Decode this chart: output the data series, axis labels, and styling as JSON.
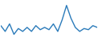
{
  "values": [
    35,
    25,
    38,
    20,
    30,
    25,
    32,
    25,
    35,
    28,
    32,
    28,
    38,
    25,
    45,
    70,
    48,
    32,
    25,
    30,
    28,
    35,
    32
  ],
  "line_color": "#2b7bba",
  "line_width": 1.0,
  "background_color": "#ffffff",
  "ylim": [
    15,
    78
  ]
}
